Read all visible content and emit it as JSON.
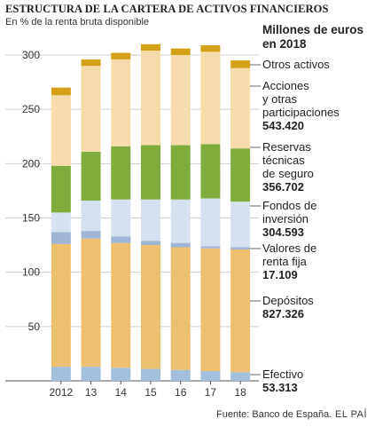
{
  "chart_data": {
    "type": "bar",
    "stacked": true,
    "title": "ESTRUCTURA DE LA CARTERA DE ACTIVOS FINANCIEROS",
    "subtitle": "En % de la renta bruta disponible",
    "categories": [
      "2012",
      "13",
      "14",
      "15",
      "16",
      "17",
      "18"
    ],
    "ylim": [
      0,
      310
    ],
    "yticks": [
      50,
      100,
      150,
      200,
      250,
      300
    ],
    "grid": true,
    "legend_heading": [
      "Millones de euros",
      "en 2018"
    ],
    "series": [
      {
        "name": "Efectivo",
        "color": "#a3bfdc",
        "values": [
          13,
          13,
          12,
          11,
          10,
          9,
          8
        ]
      },
      {
        "name": "Depósitos",
        "color": "#ecc06e",
        "values": [
          113,
          118,
          115,
          114,
          113,
          113,
          113
        ]
      },
      {
        "name": "Valores de renta fija",
        "color": "#9fb5d3",
        "values": [
          11,
          7,
          6,
          4,
          4,
          2,
          2
        ]
      },
      {
        "name": "Fondos de inversión",
        "color": "#d6e1ef",
        "values": [
          18,
          28,
          34,
          38,
          40,
          44,
          42
        ]
      },
      {
        "name": "Reservas técnicas de seguro",
        "color": "#7fac3a",
        "values": [
          43,
          45,
          49,
          50,
          50,
          50,
          49
        ]
      },
      {
        "name": "Acciones y otras participaciones",
        "color": "#f5dcaa",
        "values": [
          65,
          79,
          80,
          87,
          83,
          85,
          74
        ]
      },
      {
        "name": "Otros activos",
        "color": "#d4a017",
        "values": [
          7,
          6,
          6,
          6,
          6,
          6,
          7
        ]
      }
    ],
    "legend": [
      {
        "lines": [
          "Otros activos"
        ],
        "value": ""
      },
      {
        "lines": [
          "Acciones",
          "y otras",
          "participaciones"
        ],
        "value": "543.420"
      },
      {
        "lines": [
          "Reservas",
          "técnicas",
          "de seguro"
        ],
        "value": "356.702"
      },
      {
        "lines": [
          "Fondos de",
          "inversión"
        ],
        "value": "304.593"
      },
      {
        "lines": [
          "Valores de",
          "renta fija"
        ],
        "value": "17.109"
      },
      {
        "lines": [
          "Depósitos"
        ],
        "value": "827.326"
      },
      {
        "lines": [
          "Efectivo"
        ],
        "value": "53.313"
      }
    ],
    "source": "Fuente: Banco de España.",
    "brand": "EL PAÍS"
  }
}
